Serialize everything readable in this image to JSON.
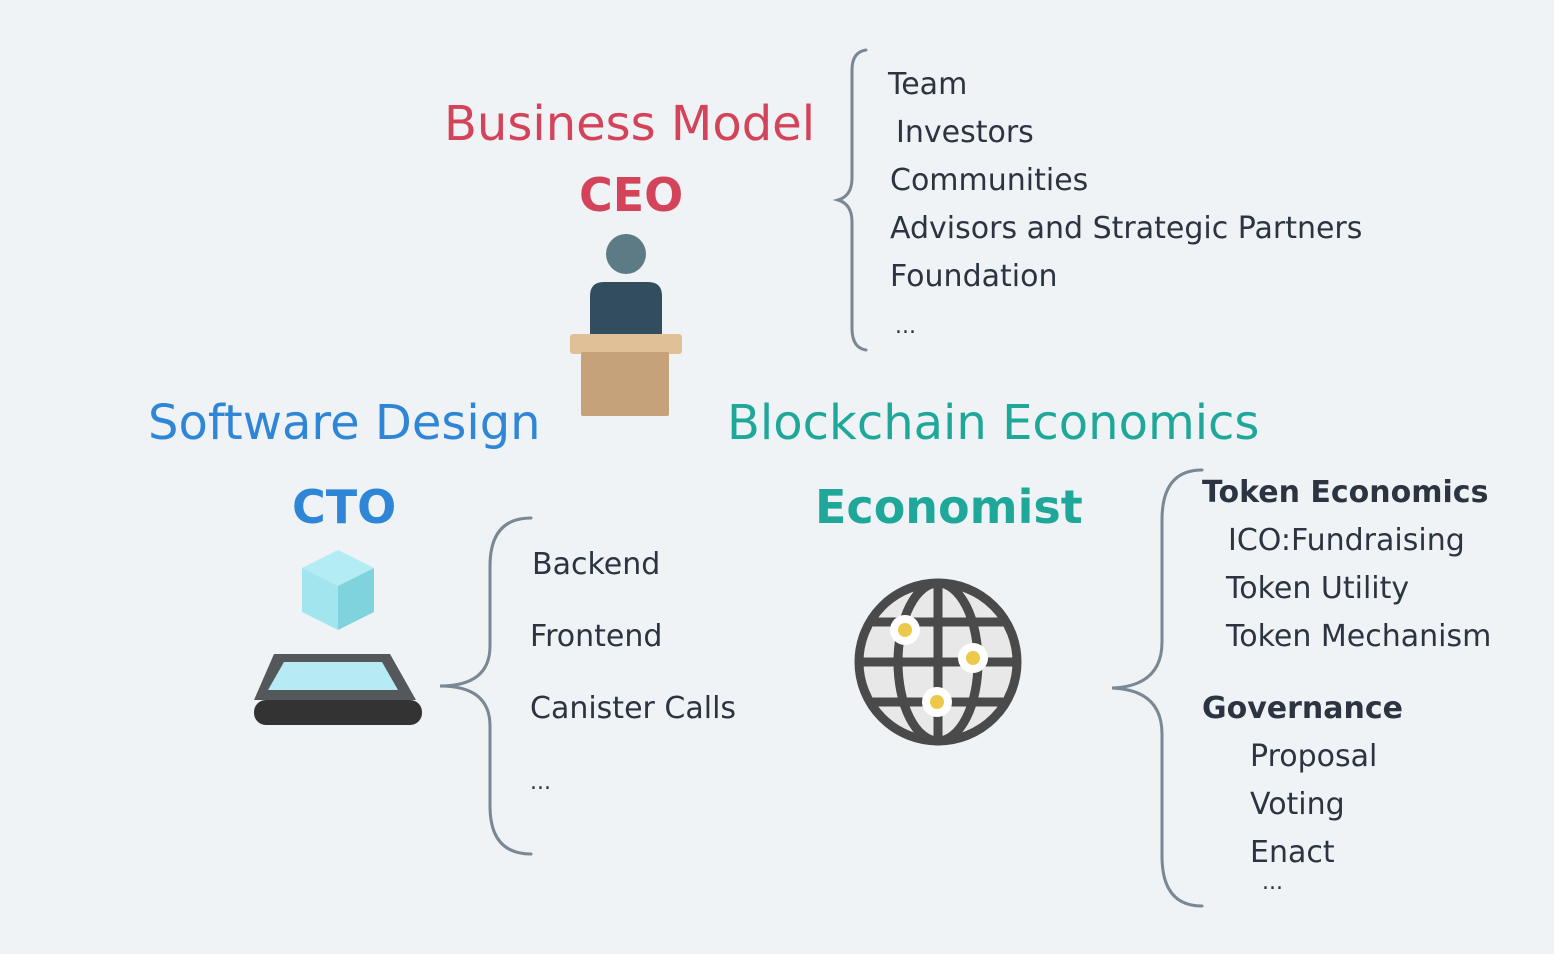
{
  "ceo": {
    "heading": "Business Model",
    "role": "CEO",
    "items": [
      "Team",
      "Investors",
      "Communities",
      "Advisors and Strategic Partners",
      "Foundation",
      "..."
    ]
  },
  "cto": {
    "heading": "Software Design",
    "role": "CTO",
    "items": [
      "Backend",
      "Frontend",
      "Canister Calls",
      "..."
    ]
  },
  "economist": {
    "heading": "Blockchain Economics",
    "role": "Economist",
    "groups": [
      {
        "title": "Token Economics",
        "items": [
          "ICO:Fundraising",
          "Token Utility",
          "Token Mechanism"
        ]
      },
      {
        "title": "Governance",
        "items": [
          "Proposal",
          "Voting",
          "Enact",
          "..."
        ]
      }
    ]
  },
  "colors": {
    "ceo": "#d3445a",
    "cto": "#2f86d6",
    "economist": "#1fa89a",
    "brace": "#7a8794"
  },
  "icons": {
    "ceo": "podium-speaker-icon",
    "cto": "cube-tablet-icon",
    "economist": "globe-network-icon"
  }
}
